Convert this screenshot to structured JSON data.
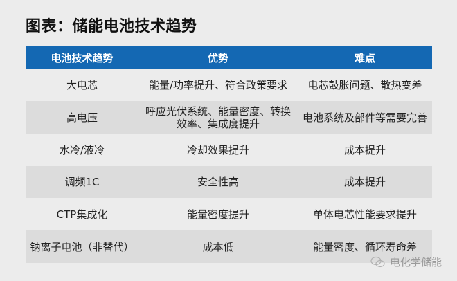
{
  "title": "图表：储能电池技术趋势",
  "table": {
    "headers": [
      "电池技术趋势",
      "优势",
      "难点"
    ],
    "rows": [
      [
        "大电芯",
        "能量/功率提升、符合政策要求",
        "电芯鼓胀问题、散热变差"
      ],
      [
        "高电压",
        "呼应光伏系统、能量密度、转换效率、集成度提升",
        "电池系统及部件等需要完善"
      ],
      [
        "水冷/液冷",
        "冷却效果提升",
        "成本提升"
      ],
      [
        "调频1C",
        "安全性高",
        "成本提升"
      ],
      [
        "CTP集成化",
        "能量密度提升",
        "单体电芯性能要求提升"
      ],
      [
        "钠离子电池（非替代）",
        "成本低",
        "能量密度、循环寿命差"
      ]
    ]
  },
  "watermark": {
    "text": "电化学储能",
    "icon": "wechat-icon"
  },
  "colors": {
    "header_bg": "#1468b3",
    "shade_row": "#dcdcdc",
    "background": "#ececec"
  }
}
